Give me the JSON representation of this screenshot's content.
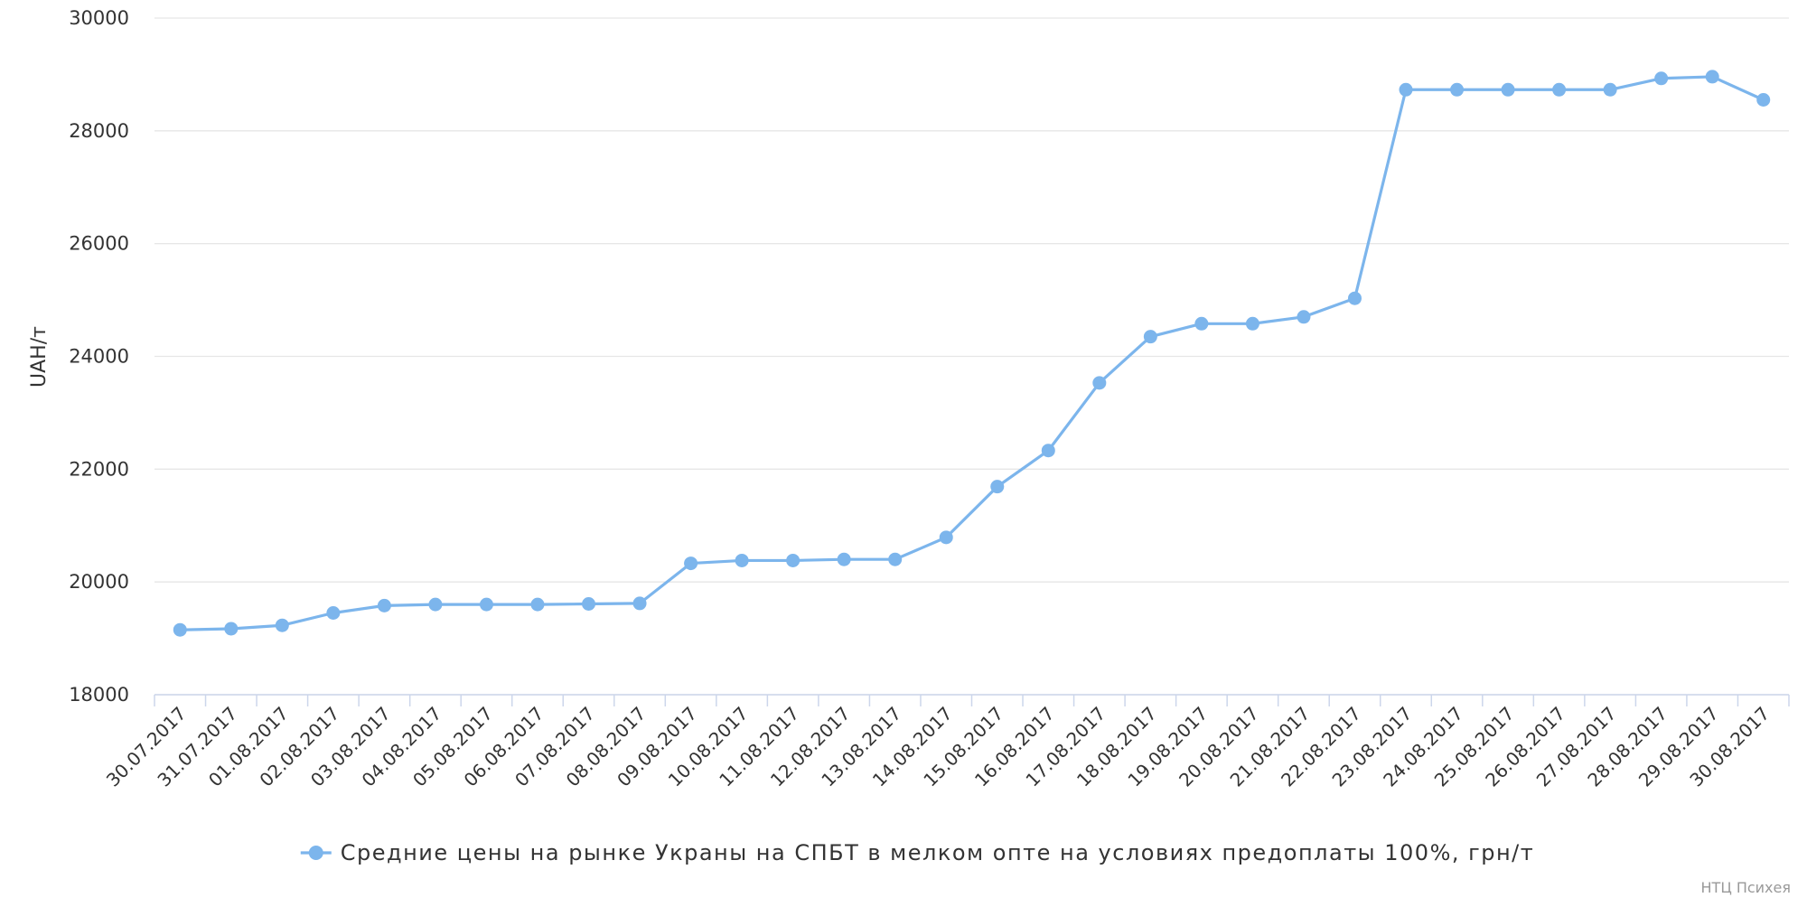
{
  "chart_data": {
    "type": "line",
    "y_axis_label": "UAH/т",
    "categories": [
      "30.07.2017",
      "31.07.2017",
      "01.08.2017",
      "02.08.2017",
      "03.08.2017",
      "04.08.2017",
      "05.08.2017",
      "06.08.2017",
      "07.08.2017",
      "08.08.2017",
      "09.08.2017",
      "10.08.2017",
      "11.08.2017",
      "12.08.2017",
      "13.08.2017",
      "14.08.2017",
      "15.08.2017",
      "16.08.2017",
      "17.08.2017",
      "18.08.2017",
      "19.08.2017",
      "20.08.2017",
      "21.08.2017",
      "22.08.2017",
      "23.08.2017",
      "24.08.2017",
      "25.08.2017",
      "26.08.2017",
      "27.08.2017",
      "28.08.2017",
      "29.08.2017",
      "30.08.2017"
    ],
    "series": [
      {
        "name": "Средние цены на рынке Украны на СПБТ в мелком опте на условиях предоплаты 100%, грн/т",
        "color": "#7cb5ec",
        "values": [
          19150,
          19170,
          19230,
          19450,
          19580,
          19600,
          19600,
          19600,
          19610,
          19620,
          20330,
          20380,
          20380,
          20400,
          20400,
          20790,
          21690,
          22330,
          23530,
          24350,
          24580,
          24580,
          24700,
          25030,
          28730,
          28730,
          28730,
          28730,
          28730,
          28930,
          28960,
          28550
        ]
      }
    ],
    "ylim": [
      18000,
      30000
    ],
    "yticks": [
      18000,
      20000,
      22000,
      24000,
      26000,
      28000,
      30000
    ],
    "grid": true,
    "legend": "bottom",
    "credit": "НТЦ Психея"
  }
}
